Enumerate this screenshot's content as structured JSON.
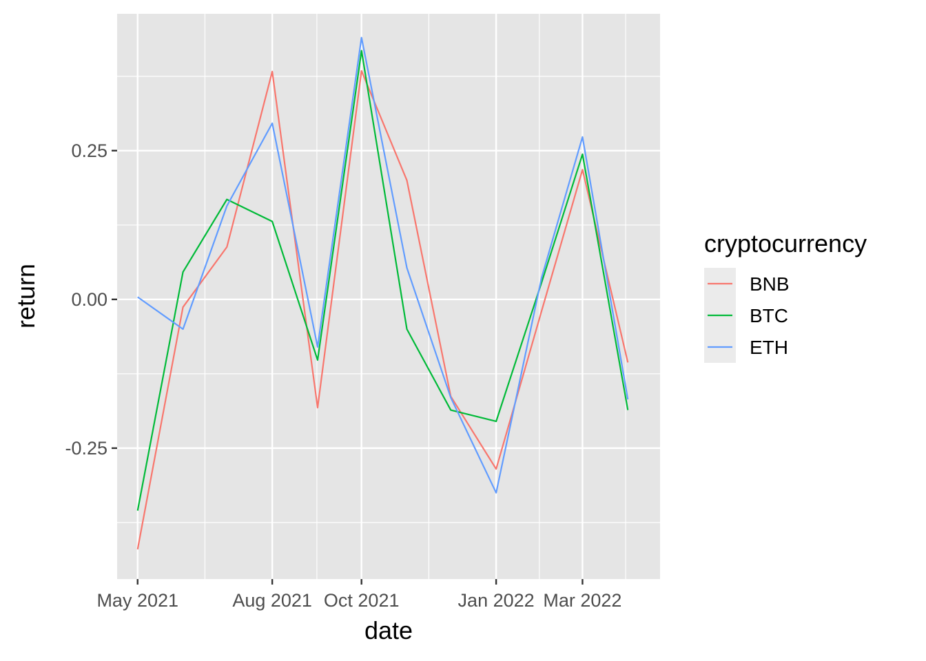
{
  "chart_data": {
    "type": "line",
    "xlabel": "date",
    "ylabel": "return",
    "x": [
      "2021-05-01",
      "2021-06-01",
      "2021-07-01",
      "2021-08-01",
      "2021-09-01",
      "2021-10-01",
      "2021-11-01",
      "2021-12-01",
      "2022-01-01",
      "2022-02-01",
      "2022-03-01",
      "2022-04-01"
    ],
    "x_ticks": [
      {
        "date": "2021-05-01",
        "label": "May 2021"
      },
      {
        "date": "2021-08-01",
        "label": "Aug 2021"
      },
      {
        "date": "2021-10-01",
        "label": "Oct 2021"
      },
      {
        "date": "2022-01-01",
        "label": "Jan 2022"
      },
      {
        "date": "2022-03-01",
        "label": "Mar 2022"
      }
    ],
    "y_ticks": [
      {
        "value": 0.25,
        "label": "0.25"
      },
      {
        "value": 0.0,
        "label": "0.00"
      },
      {
        "value": -0.25,
        "label": "-0.25"
      }
    ],
    "ylim": [
      -0.47,
      0.48
    ],
    "xlim": [
      "2021-04-17",
      "2022-04-23"
    ],
    "grid": true,
    "legend": {
      "title": "cryptocurrency",
      "position": "right"
    },
    "series": [
      {
        "name": "BNB",
        "color": "#F8766D",
        "values": [
          -0.42,
          -0.013,
          0.088,
          0.383,
          -0.182,
          0.384,
          0.2,
          -0.163,
          -0.285,
          -0.02,
          0.218,
          -0.106
        ]
      },
      {
        "name": "BTC",
        "color": "#00BA38",
        "values": [
          -0.355,
          0.046,
          0.168,
          0.131,
          -0.102,
          0.418,
          -0.05,
          -0.186,
          -0.205,
          0.028,
          0.244,
          -0.186
        ]
      },
      {
        "name": "ETH",
        "color": "#619CFF",
        "values": [
          0.004,
          -0.05,
          0.157,
          0.296,
          -0.08,
          0.44,
          0.053,
          -0.165,
          -0.325,
          0.036,
          0.273,
          -0.168
        ]
      }
    ]
  }
}
